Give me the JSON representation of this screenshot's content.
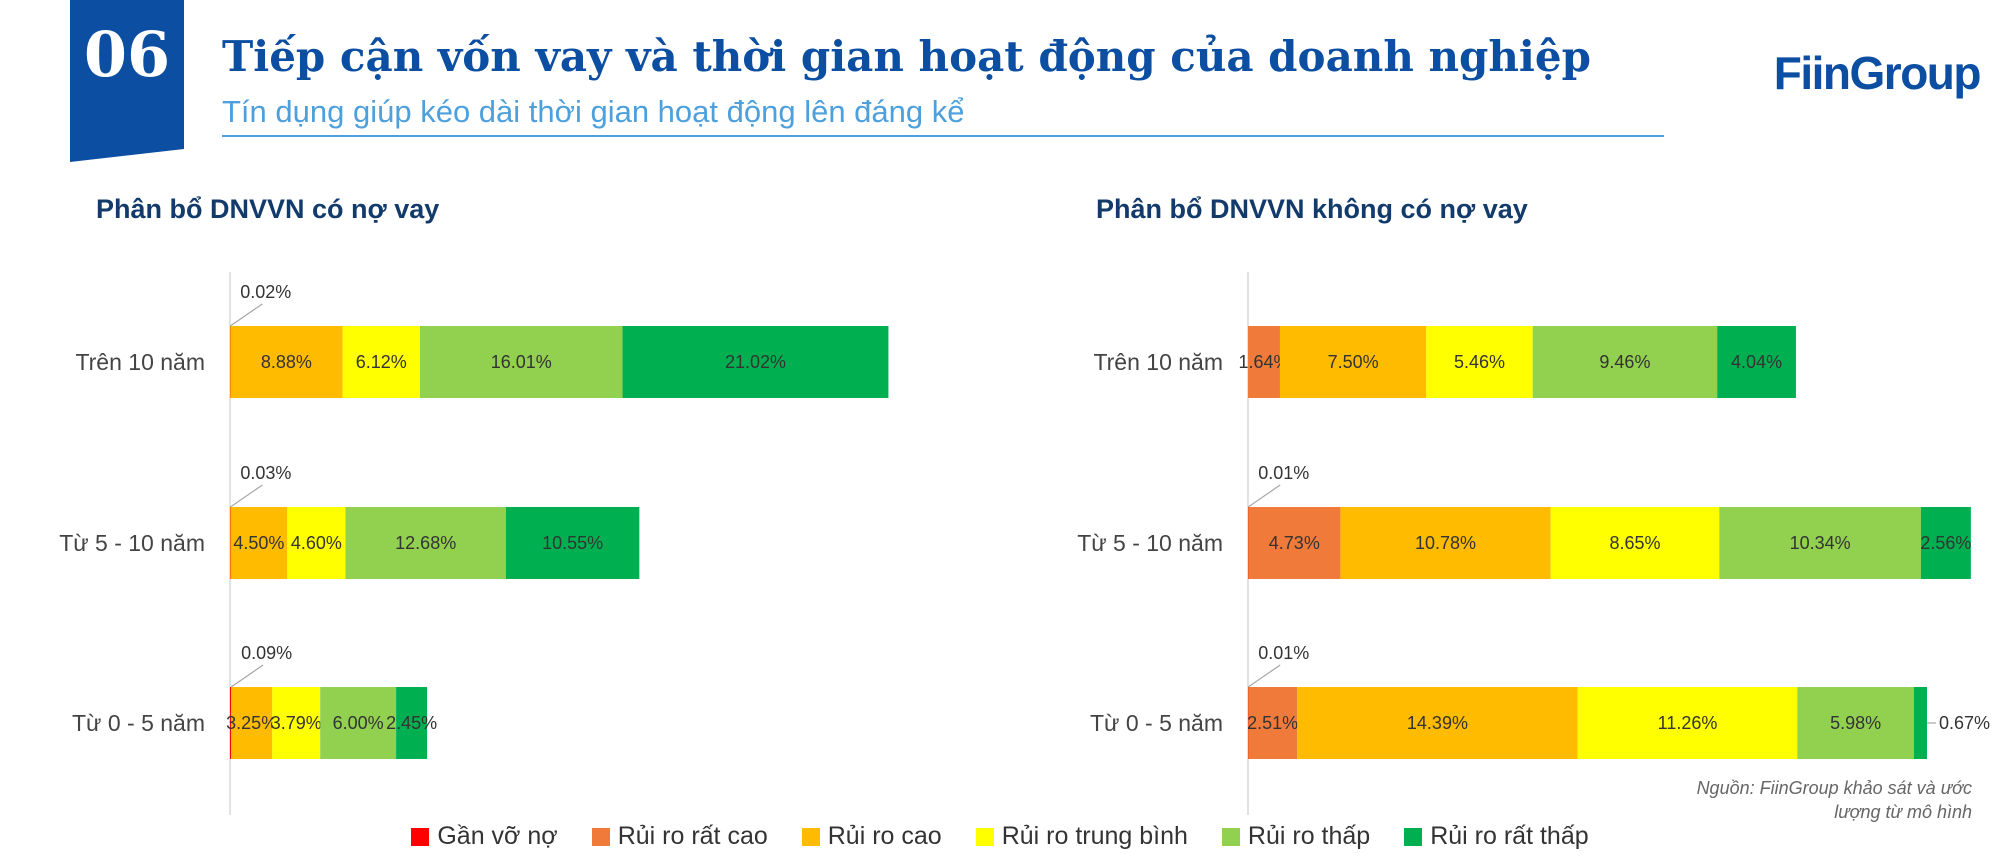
{
  "header": {
    "section_number": "06",
    "title": "Tiếp cận vốn vay và thời gian hoạt động của doanh nghiệp",
    "subtitle": "Tín dụng giúp kéo dài thời gian hoạt động lên đáng kể",
    "logo": "FiinGroup"
  },
  "source_note": {
    "line1": "Nguồn: FiinGroup khảo sát và ước",
    "line2": "lượng từ mô hình"
  },
  "colors": {
    "accent": "#0b4ea2",
    "subtitle": "#4da0dc",
    "series": [
      "#ff0000",
      "#f07a3a",
      "#ffbb00",
      "#ffff00",
      "#92d050",
      "#00b050"
    ]
  },
  "chart_data": [
    {
      "type": "bar",
      "orientation": "horizontal",
      "stacked": true,
      "title": "Phân bổ DNVVN có nợ vay",
      "categories": [
        "Trên 10 năm",
        "Từ 5 - 10 năm",
        "Từ 0 - 5 năm"
      ],
      "series": [
        {
          "name": "Gần vỡ nợ",
          "values": [
            0.02,
            0.03,
            0.09
          ],
          "labels": [
            "0.02%",
            "0.03%",
            "0.09%"
          ]
        },
        {
          "name": "Rủi ro rất cao",
          "values": [
            0,
            0,
            0
          ],
          "labels": [
            "",
            "",
            ""
          ]
        },
        {
          "name": "Rủi ro cao",
          "values": [
            8.88,
            4.5,
            3.25
          ],
          "labels": [
            "8.88%",
            "4.50%",
            "3.25%"
          ]
        },
        {
          "name": "Rủi ro trung bình",
          "values": [
            6.12,
            4.6,
            3.79
          ],
          "labels": [
            "6.12%",
            "4.60%",
            "3.79%"
          ]
        },
        {
          "name": "Rủi ro thấp",
          "values": [
            16.01,
            12.68,
            6.0
          ],
          "labels": [
            "16.01%",
            "12.68%",
            "6.00%"
          ]
        },
        {
          "name": "Rủi ro rất thấp",
          "values": [
            21.02,
            10.55,
            2.45
          ],
          "labels": [
            "21.02%",
            "10.55%",
            "2.45%"
          ]
        }
      ]
    },
    {
      "type": "bar",
      "orientation": "horizontal",
      "stacked": true,
      "title": "Phân bổ DNVVN không có nợ vay",
      "categories": [
        "Trên 10 năm",
        "Từ 5 - 10 năm",
        "Từ 0 - 5 năm"
      ],
      "series": [
        {
          "name": "Gần vỡ nợ",
          "values": [
            0,
            0.01,
            0.01
          ],
          "labels": [
            "",
            "0.01%",
            "0.01%"
          ]
        },
        {
          "name": "Rủi ro rất cao",
          "values": [
            1.64,
            4.73,
            2.51
          ],
          "labels": [
            "1.64%",
            "4.73%",
            "2.51%"
          ]
        },
        {
          "name": "Rủi ro cao",
          "values": [
            7.5,
            10.78,
            14.39
          ],
          "labels": [
            "7.50%",
            "10.78%",
            "14.39%"
          ]
        },
        {
          "name": "Rủi ro trung bình",
          "values": [
            5.46,
            8.65,
            11.26
          ],
          "labels": [
            "5.46%",
            "8.65%",
            "11.26%"
          ]
        },
        {
          "name": "Rủi ro thấp",
          "values": [
            9.46,
            10.34,
            5.98
          ],
          "labels": [
            "9.46%",
            "10.34%",
            "5.98%"
          ]
        },
        {
          "name": "Rủi ro rất thấp",
          "values": [
            4.04,
            2.56,
            0.67
          ],
          "labels": [
            "4.04%",
            "2.56%",
            "0.67%"
          ]
        }
      ]
    }
  ],
  "legend": {
    "position": "bottom",
    "items": [
      "Gần vỡ nợ",
      "Rủi ro rất cao",
      "Rủi ro cao",
      "Rủi ro trung bình",
      "Rủi ro thấp",
      "Rủi ro rất thấp"
    ]
  }
}
